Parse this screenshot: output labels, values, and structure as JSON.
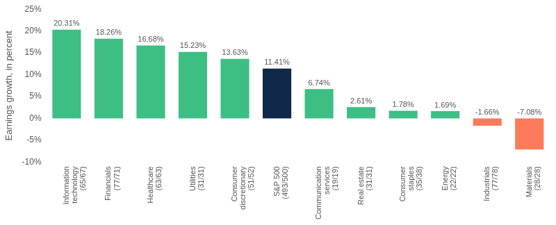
{
  "chart_data": {
    "type": "bar",
    "y_label": "Earnings growth, in percent",
    "categories": [
      "Information technology (65/67)",
      "Financials (77/71)",
      "Healthcare (63/63)",
      "Utilities (31/31)",
      "Consumer discretionary (51/52)",
      "S&P 500 (493/500)",
      "Communication services (19/19)",
      "Real estate (31/31)",
      "Consumer staples (35/38)",
      "Energy (22/22)",
      "Industrials (77/78)",
      "Materials (28/28)"
    ],
    "values": [
      20.31,
      18.26,
      16.68,
      15.23,
      13.63,
      11.41,
      6.74,
      2.61,
      1.78,
      1.69,
      -1.66,
      -7.08
    ],
    "value_labels": [
      "20.31%",
      "18.26%",
      "16.68%",
      "15.23%",
      "13.63%",
      "11.41%",
      "6.74%",
      "2.61%",
      "1.78%",
      "1.69%",
      "-1.66%",
      "-7.08%"
    ],
    "colors": [
      "#3dbf84",
      "#3dbf84",
      "#3dbf84",
      "#3dbf84",
      "#3dbf84",
      "#10294a",
      "#3dbf84",
      "#3dbf84",
      "#3dbf84",
      "#3dbf84",
      "#ff7a5c",
      "#ff7a5c"
    ],
    "ylim": [
      -10,
      25
    ],
    "yticks": [
      {
        "value": -10,
        "label": "-10%"
      },
      {
        "value": -5,
        "label": "-5%"
      },
      {
        "value": 0,
        "label": "0%"
      },
      {
        "value": 5,
        "label": "5%"
      },
      {
        "value": 10,
        "label": "10%"
      },
      {
        "value": 15,
        "label": "15%"
      },
      {
        "value": 20,
        "label": "20%"
      },
      {
        "value": 25,
        "label": "25%"
      }
    ],
    "grid": false,
    "data_labels": true
  }
}
